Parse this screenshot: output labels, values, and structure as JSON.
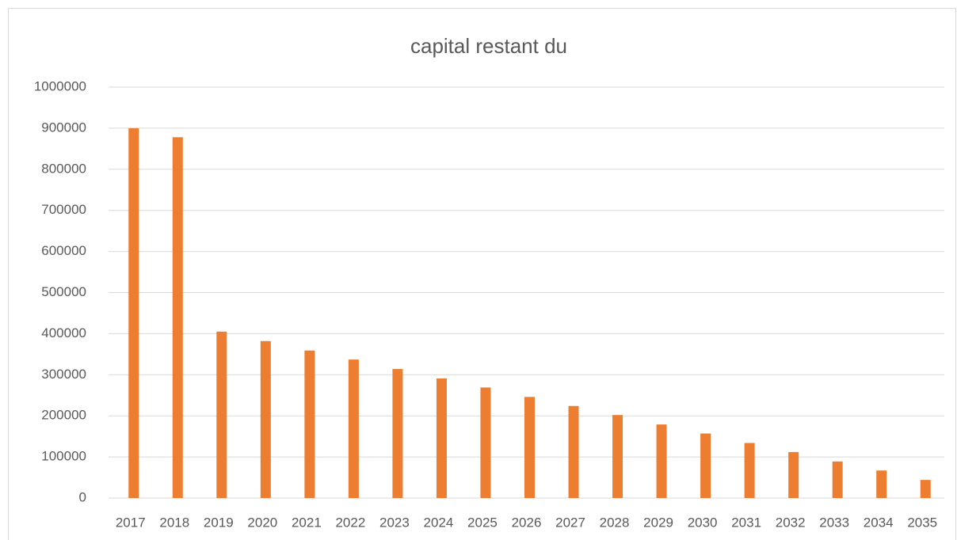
{
  "chart_data": {
    "type": "bar",
    "title": "capital restant du",
    "categories": [
      "2017",
      "2018",
      "2019",
      "2020",
      "2021",
      "2022",
      "2023",
      "2024",
      "2025",
      "2026",
      "2027",
      "2028",
      "2029",
      "2030",
      "2031",
      "2032",
      "2033",
      "2034",
      "2035"
    ],
    "values": [
      900000,
      878000,
      405000,
      382000,
      359000,
      337000,
      314000,
      291000,
      269000,
      246000,
      224000,
      202000,
      179000,
      157000,
      134000,
      112000,
      89000,
      67000,
      44000
    ],
    "color": "#ed7d31",
    "ylim": [
      0,
      1000000
    ],
    "yticks": [
      0,
      100000,
      200000,
      300000,
      400000,
      500000,
      600000,
      700000,
      800000,
      900000,
      1000000
    ],
    "grid": true
  }
}
